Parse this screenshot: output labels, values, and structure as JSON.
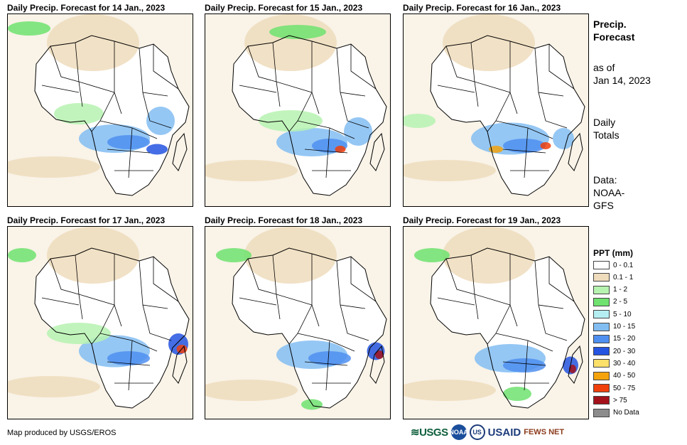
{
  "panels": [
    {
      "title": "Daily Precip. Forecast for 14 Jan., 2023"
    },
    {
      "title": "Daily Precip. Forecast for 15 Jan., 2023"
    },
    {
      "title": "Daily Precip. Forecast for 16 Jan., 2023"
    },
    {
      "title": "Daily Precip. Forecast for 17 Jan., 2023"
    },
    {
      "title": "Daily Precip. Forecast for 18 Jan., 2023"
    },
    {
      "title": "Daily Precip. Forecast for 19 Jan., 2023"
    }
  ],
  "side": {
    "title_line1": "Precip.",
    "title_line2": "Forecast",
    "asof_line1": "as of",
    "asof_line2": "Jan 14, 2023",
    "totals_line1": "Daily",
    "totals_line2": "Totals",
    "data_line1": "Data:",
    "data_line2": "NOAA-",
    "data_line3": "GFS"
  },
  "legend": {
    "title": "PPT (mm)",
    "items": [
      {
        "label": "0 - 0.1",
        "color": "#ffffff"
      },
      {
        "label": "0.1 - 1",
        "color": "#eedcbc"
      },
      {
        "label": "1 - 2",
        "color": "#b6f2b0"
      },
      {
        "label": "2 - 5",
        "color": "#6fe26f"
      },
      {
        "label": "5 - 10",
        "color": "#b5eef2"
      },
      {
        "label": "10 - 15",
        "color": "#82bdf2"
      },
      {
        "label": "15 - 20",
        "color": "#4f8ff0"
      },
      {
        "label": "20 - 30",
        "color": "#2554e0"
      },
      {
        "label": "30 - 40",
        "color": "#fbe06a"
      },
      {
        "label": "40 - 50",
        "color": "#f5a30c"
      },
      {
        "label": "50 - 75",
        "color": "#f0400c"
      },
      {
        "label": "> 75",
        "color": "#a3121a"
      },
      {
        "label": "No Data",
        "color": "#8c8c8c"
      }
    ]
  },
  "credit": "Map produced by USGS/EROS",
  "logos": {
    "usgs": "≋USGS",
    "noaa": "NOAA",
    "usaid_seal": "US",
    "usaid": "USAID",
    "fews": "FEWS NET"
  }
}
